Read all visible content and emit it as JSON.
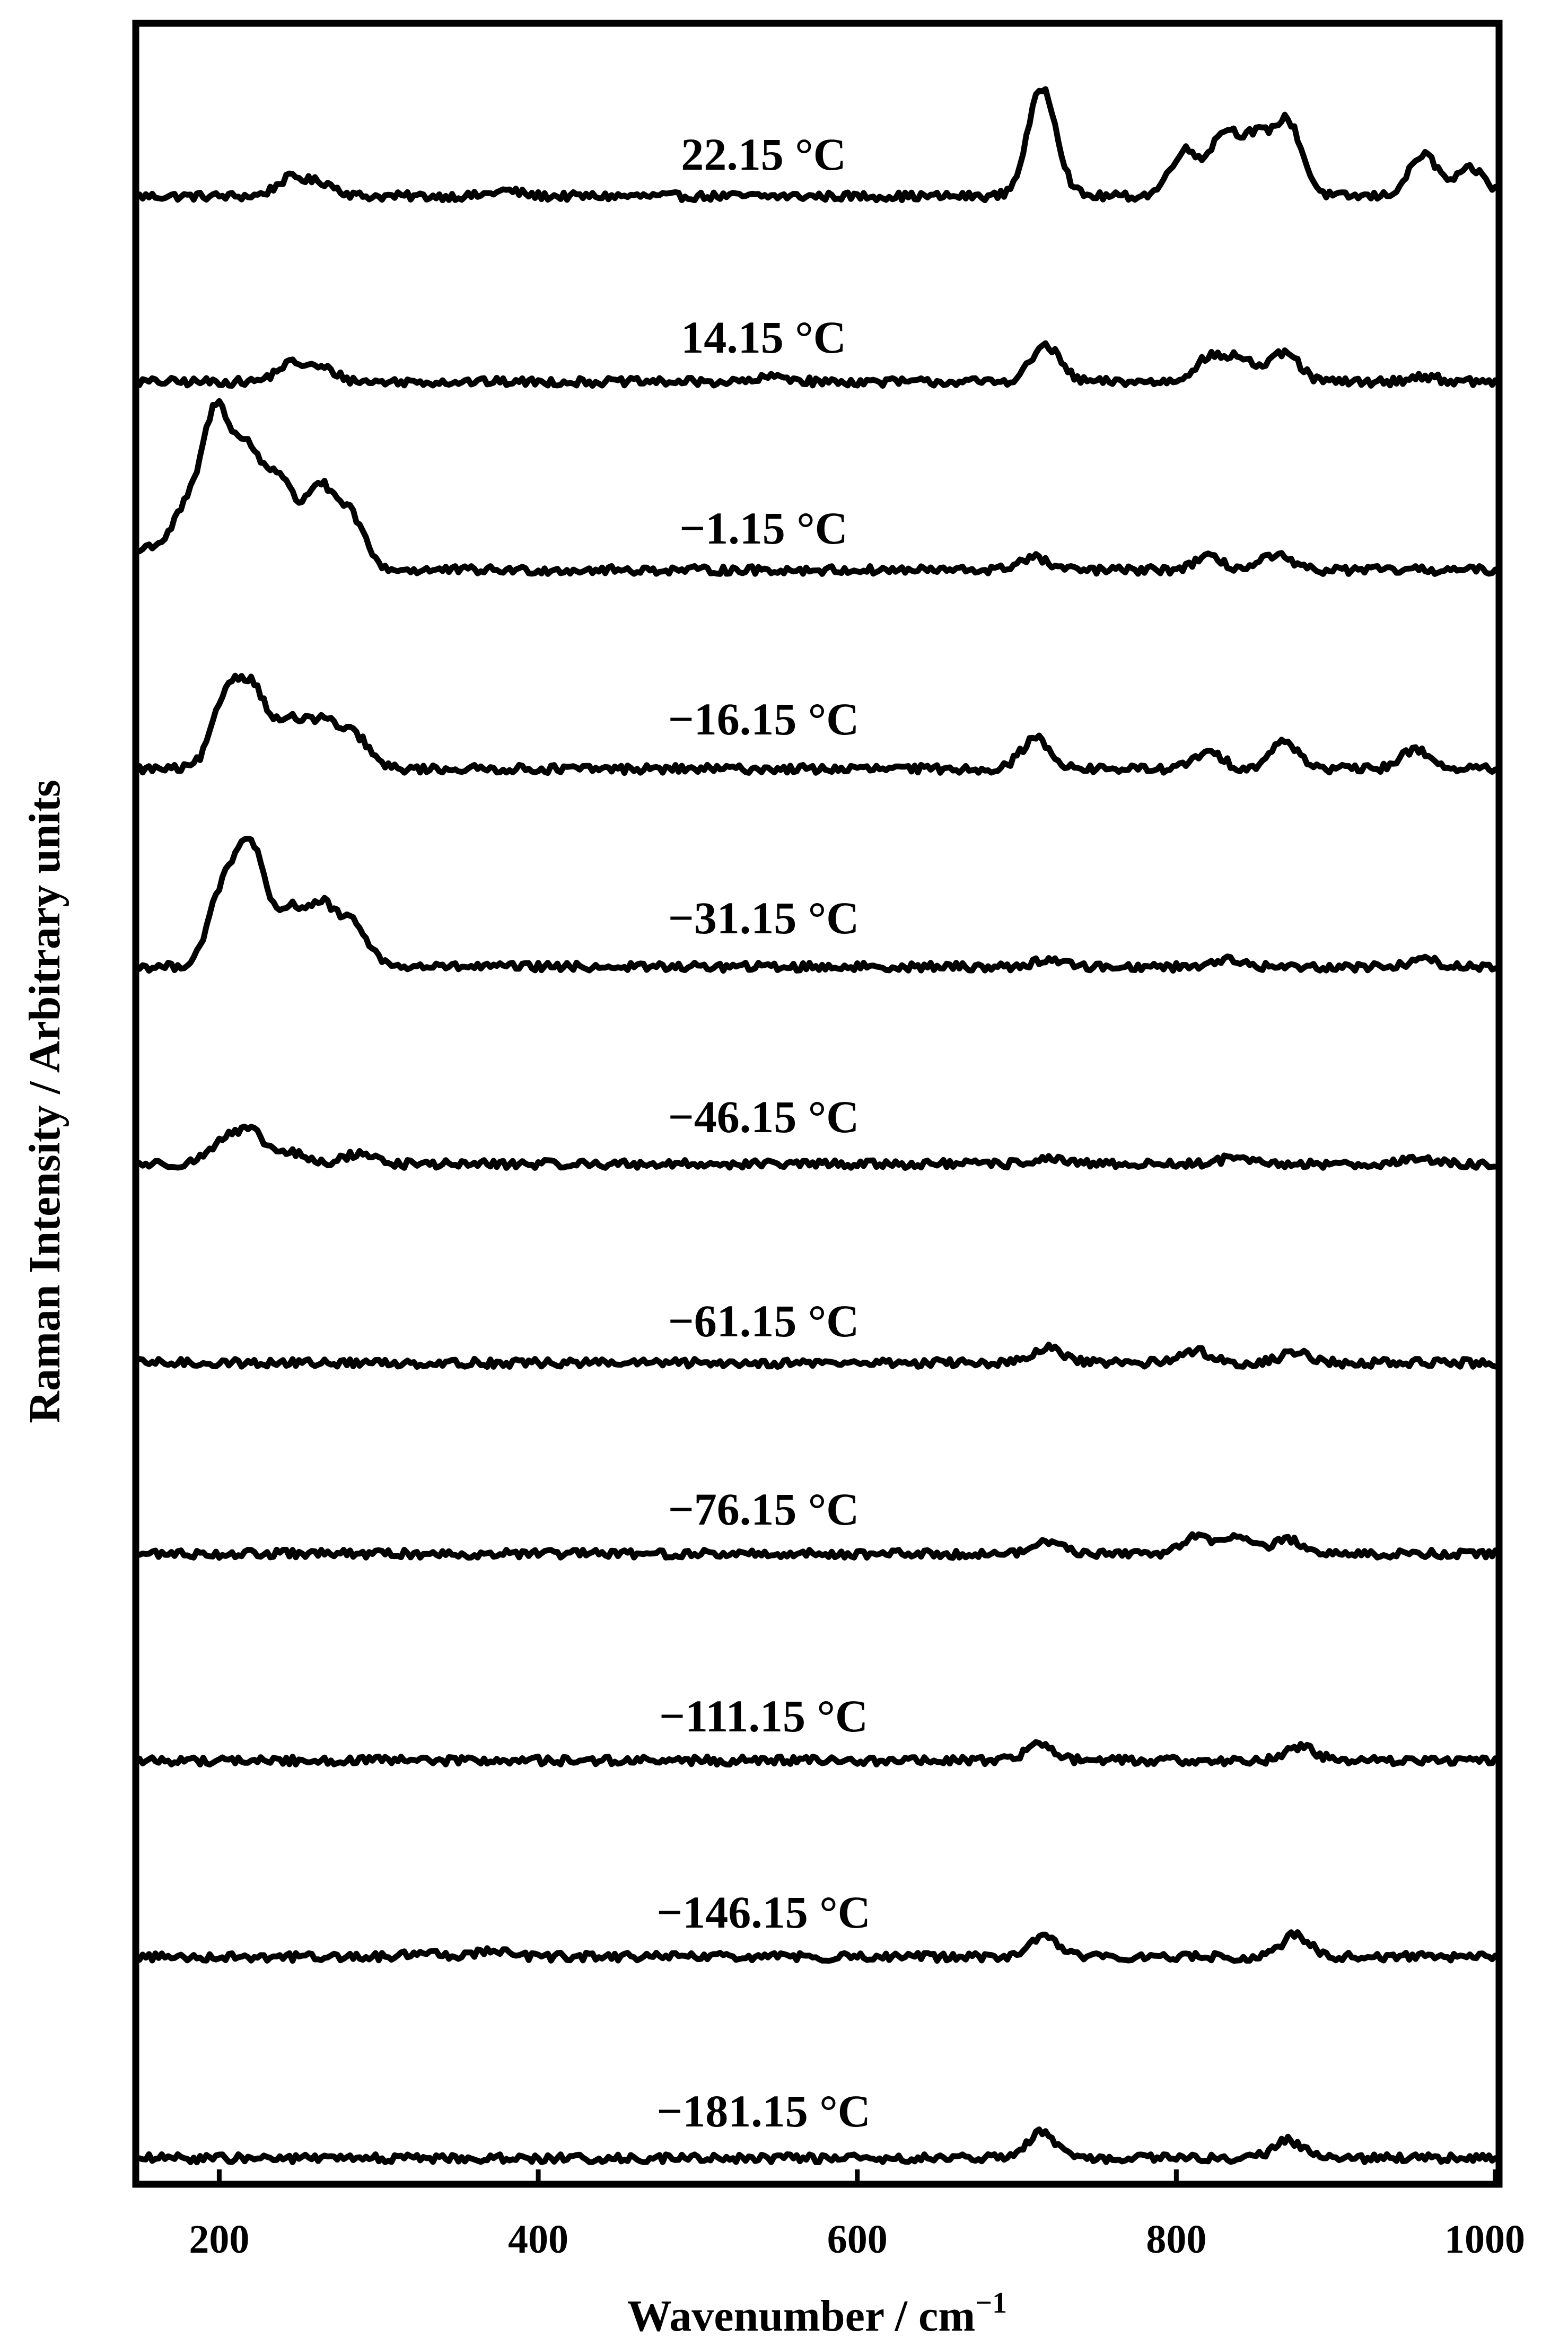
{
  "chart_data": {
    "type": "line",
    "title": "",
    "xlabel": "Wavenumber / cm",
    "xlabel_sup": "−1",
    "ylabel": "Raman Intensity / Arbitrary units",
    "xlim": [
      150,
      1000
    ],
    "xticks": [
      200,
      400,
      600,
      800,
      1000
    ],
    "yticks_shown": false,
    "grid": false,
    "legend": "labels above each trace",
    "line_color": "#000000",
    "series": [
      {
        "name": "22.15 °C",
        "peaks": [
          [
            245,
            0.1
          ],
          [
            265,
            0.07
          ],
          [
            380,
            0.03
          ],
          [
            716,
            0.6
          ],
          [
            805,
            0.25
          ],
          [
            830,
            0.34
          ],
          [
            850,
            0.3
          ],
          [
            870,
            0.4
          ],
          [
            955,
            0.23
          ],
          [
            985,
            0.15
          ]
        ]
      },
      {
        "name": "14.15 °C",
        "peaks": [
          [
            245,
            0.1
          ],
          [
            265,
            0.07
          ],
          [
            550,
            0.03
          ],
          [
            718,
            0.2
          ],
          [
            820,
            0.13
          ],
          [
            840,
            0.13
          ],
          [
            868,
            0.16
          ],
          [
            955,
            0.03
          ]
        ]
      },
      {
        "name": "−1.15 °C",
        "peaks": [
          [
            155,
            0.12
          ],
          [
            178,
            0.3
          ],
          [
            198,
            0.85
          ],
          [
            218,
            0.6
          ],
          [
            238,
            0.48
          ],
          [
            262,
            0.45
          ],
          [
            282,
            0.3
          ],
          [
            710,
            0.07
          ],
          [
            820,
            0.07
          ],
          [
            862,
            0.08
          ]
        ]
      },
      {
        "name": "−16.15 °C",
        "peaks": [
          [
            205,
            0.4
          ],
          [
            222,
            0.4
          ],
          [
            245,
            0.25
          ],
          [
            265,
            0.25
          ],
          [
            285,
            0.18
          ],
          [
            712,
            0.17
          ],
          [
            820,
            0.09
          ],
          [
            868,
            0.15
          ],
          [
            950,
            0.11
          ]
        ]
      },
      {
        "name": "−31.15 °C",
        "peaks": [
          [
            202,
            0.4
          ],
          [
            220,
            0.65
          ],
          [
            245,
            0.3
          ],
          [
            265,
            0.32
          ],
          [
            285,
            0.22
          ],
          [
            720,
            0.04
          ],
          [
            830,
            0.04
          ],
          [
            955,
            0.04
          ]
        ]
      },
      {
        "name": "−46.15 °C",
        "peaks": [
          [
            202,
            0.12
          ],
          [
            220,
            0.17
          ],
          [
            245,
            0.06
          ],
          [
            288,
            0.06
          ],
          [
            718,
            0.03
          ],
          [
            835,
            0.03
          ],
          [
            950,
            0.03
          ]
        ]
      },
      {
        "name": "−61.15 °C",
        "peaks": [
          [
            720,
            0.08
          ],
          [
            812,
            0.07
          ],
          [
            875,
            0.06
          ]
        ]
      },
      {
        "name": "−76.15 °C",
        "peaks": [
          [
            720,
            0.07
          ],
          [
            812,
            0.1
          ],
          [
            840,
            0.1
          ],
          [
            870,
            0.08
          ]
        ]
      },
      {
        "name": "−111.15 °C",
        "peaks": [
          [
            715,
            0.09
          ],
          [
            878,
            0.08
          ]
        ]
      },
      {
        "name": "−146.15 °C",
        "peaks": [
          [
            330,
            0.03
          ],
          [
            370,
            0.04
          ],
          [
            718,
            0.11
          ],
          [
            875,
            0.12
          ]
        ]
      },
      {
        "name": "−181.15 °C",
        "peaks": [
          [
            715,
            0.14
          ],
          [
            870,
            0.1
          ]
        ]
      }
    ]
  }
}
